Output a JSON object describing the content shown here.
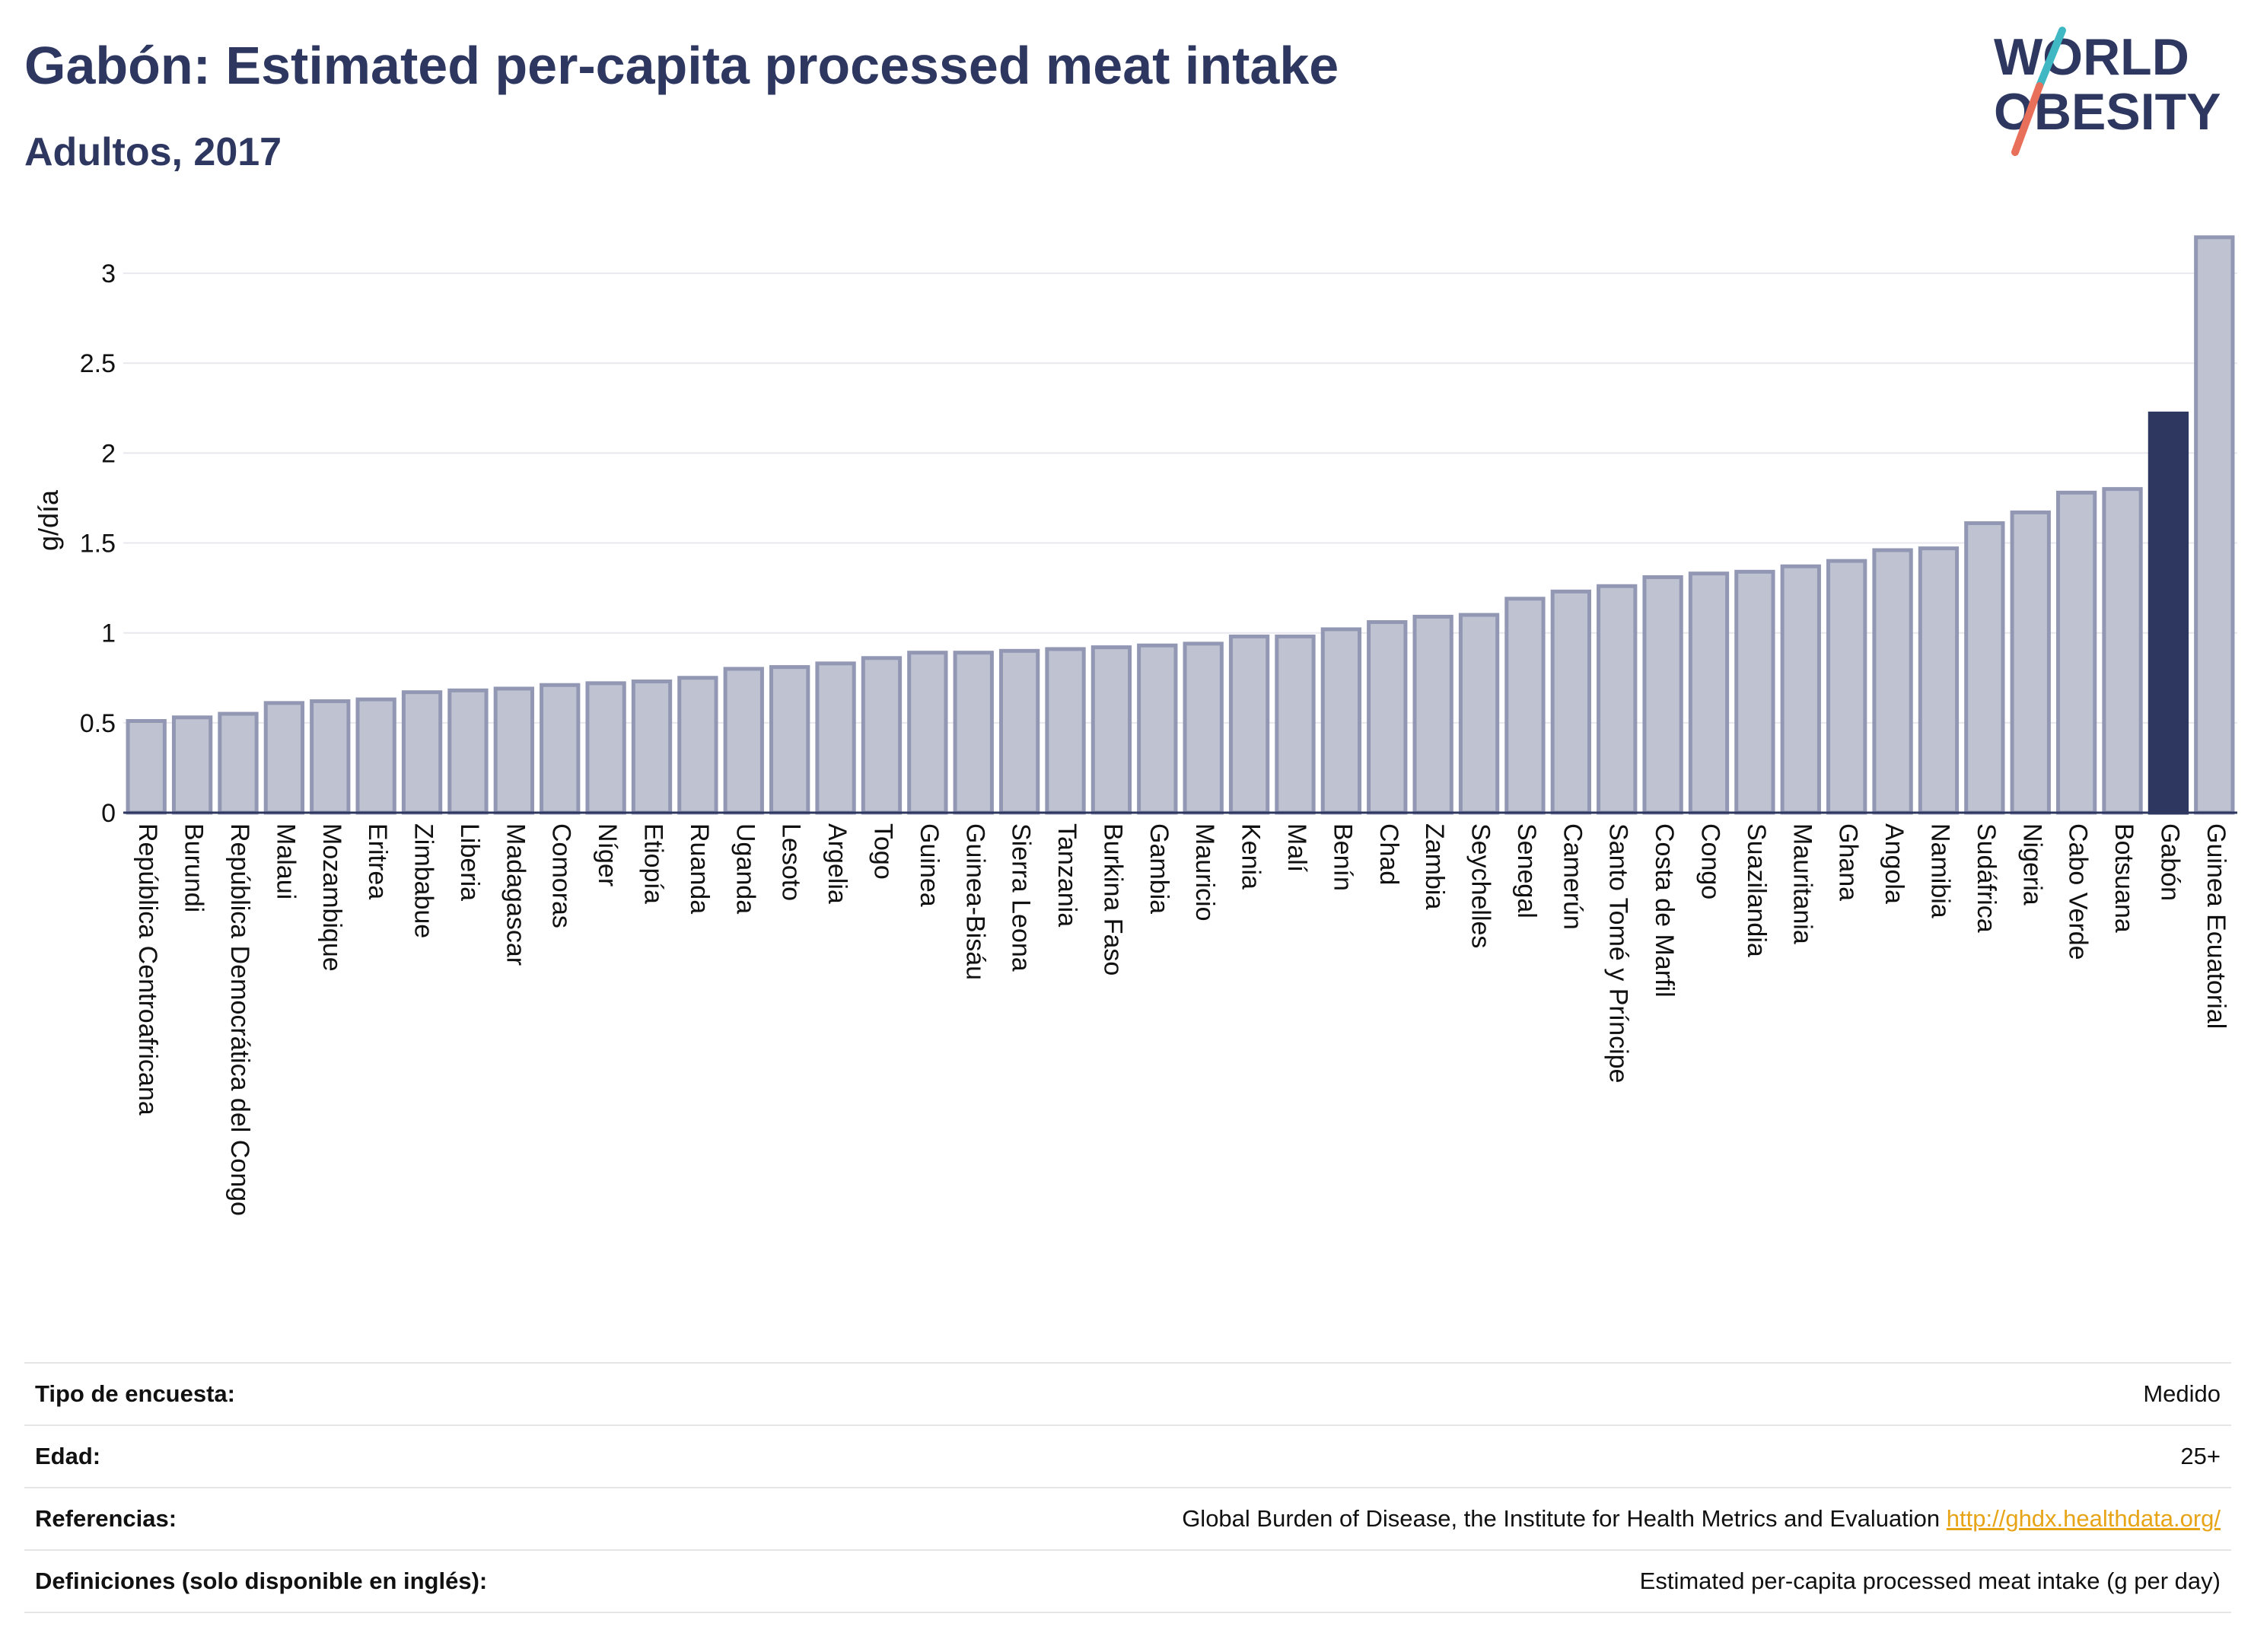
{
  "header": {
    "title": "Gabón: Estimated per-capita processed meat intake",
    "subtitle": "Adultos, 2017"
  },
  "logo": {
    "line1": "WORLD",
    "line2": "OBESITY",
    "colors": [
      "#2d3760",
      "#3fb8c4",
      "#e8705a"
    ]
  },
  "colors": {
    "bar": "#bfc3d1",
    "bar_border": "#9297b3",
    "highlight": "#2d3760",
    "title": "#2d3760",
    "link": "#e8a417"
  },
  "chart_data": {
    "type": "bar",
    "title": "",
    "xlabel": "",
    "ylabel": "g/día",
    "ylim": [
      0,
      3.25
    ],
    "yticks": [
      0,
      0.5,
      1,
      1.5,
      2,
      2.5,
      3
    ],
    "ytick_labels": [
      "0",
      "0.5",
      "1",
      "1.5",
      "2",
      "2.5",
      "3"
    ],
    "grid": true,
    "highlight": "Gabón",
    "categories": [
      "República Centroafricana",
      "Burundi",
      "República Democrática del Congo",
      "Malaui",
      "Mozambique",
      "Eritrea",
      "Zimbabue",
      "Liberia",
      "Madagascar",
      "Comoras",
      "Níger",
      "Etiopía",
      "Ruanda",
      "Uganda",
      "Lesoto",
      "Argelia",
      "Togo",
      "Guinea",
      "Guinea-Bisáu",
      "Sierra Leona",
      "Tanzania",
      "Burkina Faso",
      "Gambia",
      "Mauricio",
      "Kenia",
      "Malí",
      "Benín",
      "Chad",
      "Zambia",
      "Seychelles",
      "Senegal",
      "Camerún",
      "Santo Tomé y Príncipe",
      "Costa de Marfil",
      "Congo",
      "Suazilandia",
      "Mauritania",
      "Ghana",
      "Angola",
      "Namibia",
      "Sudáfrica",
      "Nigeria",
      "Cabo Verde",
      "Botsuana",
      "Gabón",
      "Guinea Ecuatorial"
    ],
    "values": [
      0.51,
      0.53,
      0.55,
      0.61,
      0.62,
      0.63,
      0.67,
      0.68,
      0.69,
      0.71,
      0.72,
      0.73,
      0.75,
      0.8,
      0.81,
      0.83,
      0.86,
      0.89,
      0.89,
      0.9,
      0.91,
      0.92,
      0.93,
      0.94,
      0.98,
      0.98,
      1.02,
      1.06,
      1.09,
      1.1,
      1.19,
      1.23,
      1.26,
      1.31,
      1.33,
      1.34,
      1.37,
      1.4,
      1.46,
      1.47,
      1.61,
      1.67,
      1.78,
      1.8,
      2.22,
      3.2
    ]
  },
  "info": {
    "survey_label": "Tipo de encuesta:",
    "survey_value": "Medido",
    "age_label": "Edad:",
    "age_value": "25+",
    "refs_label": "Referencias:",
    "refs_text": "Global Burden of Disease, the Institute for Health Metrics and Evaluation ",
    "refs_link": "http://ghdx.healthdata.org/",
    "defs_label": "Definiciones (solo disponible en inglés):",
    "defs_value": "Estimated per-capita processed meat intake (g per day)"
  }
}
